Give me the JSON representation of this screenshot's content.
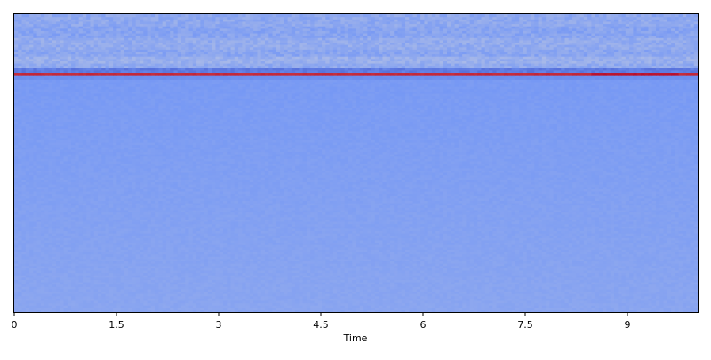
{
  "chart_data": {
    "type": "heatmap",
    "title": "",
    "xlabel": "Time",
    "ylabel": "",
    "xlim": [
      0,
      10.03
    ],
    "x_ticks": [
      0,
      1.5,
      3,
      4.5,
      6,
      7.5,
      9
    ],
    "x_tick_labels": [
      "0",
      "1.5",
      "3",
      "4.5",
      "6",
      "7.5",
      "9"
    ],
    "y_ticks_shown": false,
    "colormap": "coolwarm",
    "colormap_stops": [
      {
        "v": 0.0,
        "color": "#3b4cc0"
      },
      {
        "v": 0.25,
        "color": "#7396f5"
      },
      {
        "v": 0.5,
        "color": "#dddcdc"
      },
      {
        "v": 0.75,
        "color": "#f08a6c"
      },
      {
        "v": 1.0,
        "color": "#b40426"
      }
    ],
    "n_bins": 128,
    "bin_order": "bin 0 at bottom",
    "band_levels": [
      {
        "bins": [
          0,
          99
        ],
        "level": 0.265
      },
      {
        "bins": [
          100,
          101
        ],
        "level": 0.225
      },
      {
        "bins": [
          102,
          102
        ],
        "level": 0.93
      },
      {
        "bins": [
          103,
          104
        ],
        "level": 0.16
      },
      {
        "bins": [
          105,
          106
        ],
        "level": 0.32
      },
      {
        "bins": [
          107,
          109
        ],
        "level": 0.34
      },
      {
        "bins": [
          110,
          112
        ],
        "level": 0.305
      },
      {
        "bins": [
          113,
          117
        ],
        "level": 0.325
      },
      {
        "bins": [
          118,
          122
        ],
        "level": 0.3
      },
      {
        "bins": [
          123,
          127
        ],
        "level": 0.315
      }
    ],
    "grid": false
  }
}
